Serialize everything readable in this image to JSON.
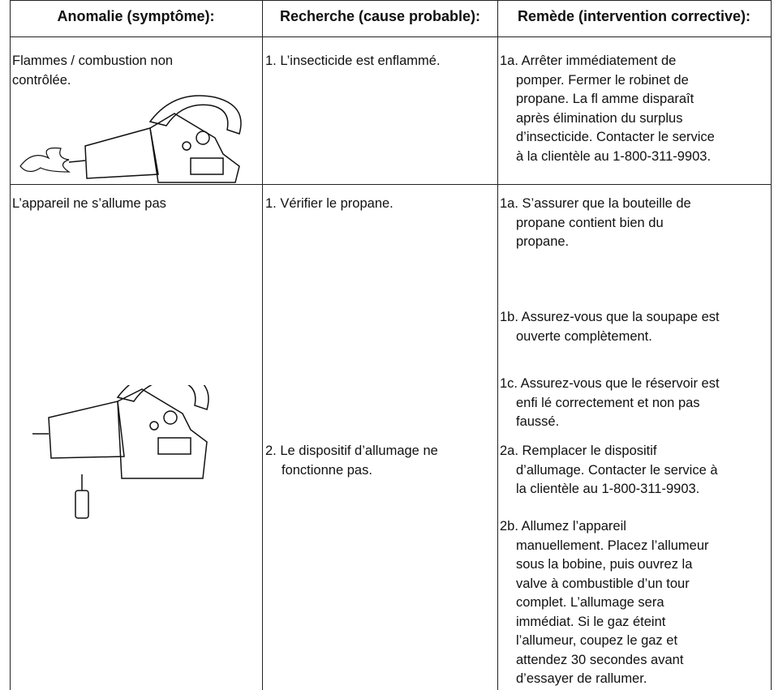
{
  "table": {
    "header": [
      "Anomalie (symptôme):",
      "Recherche (cause probable):",
      "Remède (intervention corrective):"
    ],
    "rows": [
      {
        "symptom": [
          "Flammes / combustion non",
          "contrôlée."
        ],
        "causes": [
          {
            "lines": [
              "1. L’insecticide est enflammé."
            ]
          }
        ],
        "remedies": [
          {
            "lines": [
              "1a. Arrêter immédiatement de",
              "pomper. Fermer le robinet de",
              "propane. La fl amme disparaît",
              "après élimination du surplus",
              "d’insecticide. Contacter le service",
              "à la clientèle au 1-800-311-9903."
            ]
          }
        ]
      },
      {
        "symptom": [
          "L’appareil ne s’allume pas"
        ],
        "causes": [
          {
            "lines": [
              "1. Vérifier le propane."
            ]
          },
          {
            "lines": [
              "2. Le dispositif d’allumage ne",
              "fonctionne pas."
            ]
          }
        ],
        "remedies": [
          {
            "lines": [
              "1a. S’assurer que la bouteille de",
              "propane contient bien du",
              "propane."
            ]
          },
          {
            "lines": [
              "1b. Assurez-vous que la soupape est",
              "ouverte complètement."
            ]
          },
          {
            "lines": [
              "1c. Assurez-vous que le réservoir est",
              "enfi lé correctement et non pas",
              "faussé."
            ]
          },
          {
            "lines": [
              "2a. Remplacer le dispositif",
              "d’allumage. Contacter le service à",
              "la clientèle au 1-800-311-9903."
            ]
          },
          {
            "lines": [
              "2b. Allumez l’appareil",
              "manuellement. Placez l’allumeur",
              "sous la bobine, puis ouvrez la",
              "valve à combustible d’un tour",
              "complet. L’allumage sera",
              "immédiat. Si le gaz éteint",
              "l’allumeur, coupez le gaz et",
              "attendez 30 secondes avant",
              "d’essayer de rallumer."
            ]
          }
        ]
      }
    ]
  }
}
